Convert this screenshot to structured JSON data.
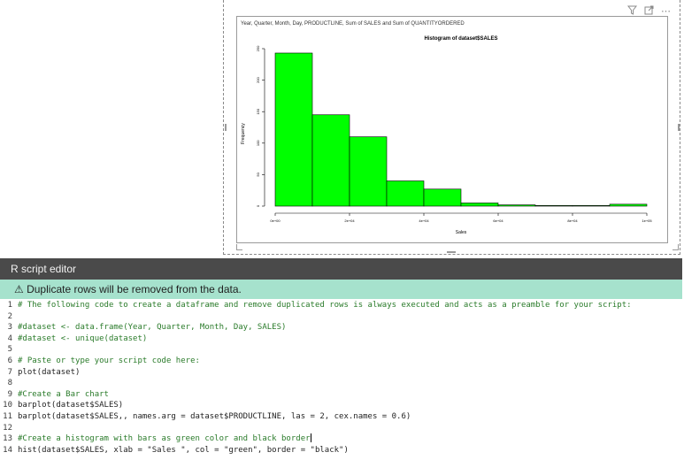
{
  "toolbar": {
    "filter_icon": "filter-icon",
    "focus_icon": "focus-mode-icon",
    "more_icon": "more-options-icon",
    "more_label": "⋯"
  },
  "visual": {
    "fields_label": "Year, Quarter, Month, Day, PRODUCTLINE, Sum of SALES and Sum of QUANTITYORDERED"
  },
  "chart_data": {
    "type": "bar",
    "title": "Histogram of dataset$SALES",
    "xlabel": "Sales",
    "ylabel": "Frequency",
    "x_ticks": [
      "0e+00",
      "2e+04",
      "4e+04",
      "6e+04",
      "8e+04",
      "1e+05"
    ],
    "y_ticks": [
      "0",
      "50",
      "100",
      "150",
      "200",
      "250"
    ],
    "bin_edges": [
      0,
      10000,
      20000,
      30000,
      40000,
      50000,
      60000,
      70000,
      80000,
      90000,
      100000
    ],
    "values": [
      243,
      145,
      110,
      40,
      27,
      5,
      2,
      1,
      1,
      3
    ],
    "xlim": [
      0,
      100000
    ],
    "ylim": [
      0,
      250
    ],
    "bar_color": "#00ff00",
    "border_color": "#000000"
  },
  "editor": {
    "title": "R script editor",
    "warning": "⚠ Duplicate rows will be removed from the data.",
    "lines": [
      {
        "n": "1",
        "text": "# The following code to create a dataframe and remove duplicated rows is always executed and acts as a preamble for your script:"
      },
      {
        "n": "2",
        "text": ""
      },
      {
        "n": "3",
        "text": "#dataset <- data.frame(Year, Quarter, Month, Day, SALES)"
      },
      {
        "n": "4",
        "text": "#dataset <- unique(dataset)"
      },
      {
        "n": "5",
        "text": ""
      },
      {
        "n": "6",
        "text": "# Paste or type your script code here:"
      },
      {
        "n": "7",
        "text": "plot(dataset)"
      },
      {
        "n": "8",
        "text": ""
      },
      {
        "n": "9",
        "text": "#Create a Bar chart"
      },
      {
        "n": "10",
        "text": "barplot(dataset$SALES)"
      },
      {
        "n": "11",
        "text": "barplot(dataset$SALES,, names.arg = dataset$PRODUCTLINE, las = 2, cex.names = 0.6)"
      },
      {
        "n": "12",
        "text": ""
      },
      {
        "n": "13",
        "text": "#Create a histogram with bars as green color and black border"
      },
      {
        "n": "14",
        "text": "hist(dataset$SALES, xlab = \"Sales \", col = \"green\", border = \"black\")"
      }
    ]
  }
}
